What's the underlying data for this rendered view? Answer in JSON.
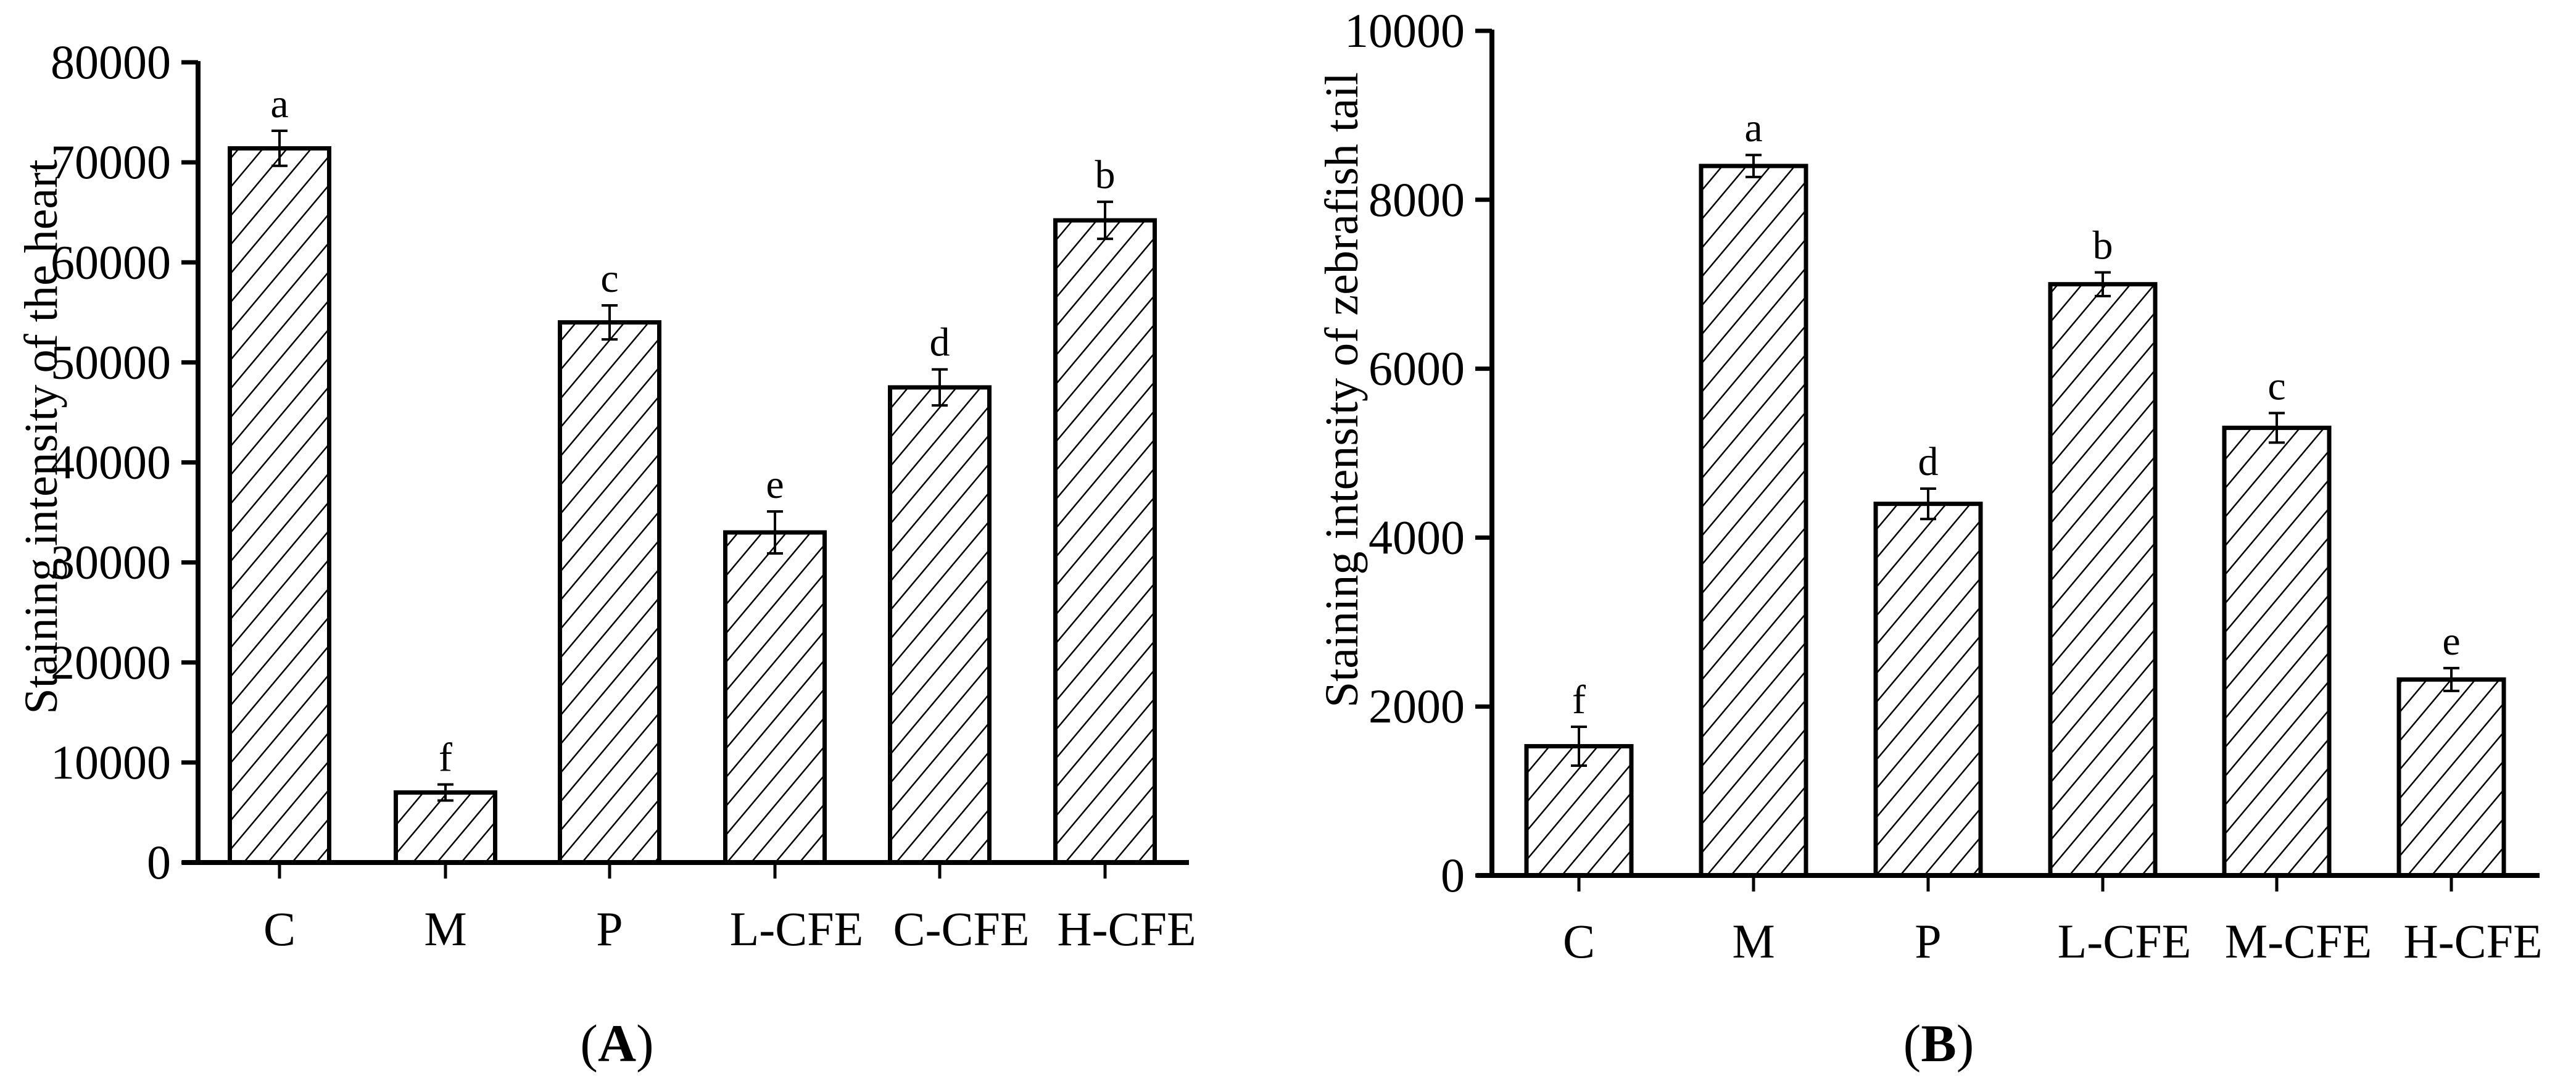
{
  "figure": {
    "panels": [
      {
        "id": "A",
        "label_open": "(",
        "label_letter": "A",
        "label_close": ")"
      },
      {
        "id": "B",
        "label_open": "(",
        "label_letter": "B",
        "label_close": ")"
      }
    ]
  },
  "chart_data": [
    {
      "type": "bar",
      "title": "",
      "panel": "A",
      "xlabel": "",
      "ylabel": "Staining intensity of the heart",
      "categories": [
        "C",
        "M",
        "P",
        "L-CFE",
        "C-CFE",
        "H-CFE"
      ],
      "values": [
        71400,
        7000,
        54000,
        33000,
        47500,
        64200
      ],
      "error": [
        1750,
        800,
        1700,
        2100,
        1800,
        1850
      ],
      "significance_letters": [
        "a",
        "f",
        "c",
        "e",
        "d",
        "b"
      ],
      "ylim": [
        0,
        80000
      ],
      "yticks": [
        0,
        10000,
        20000,
        30000,
        40000,
        50000,
        60000,
        70000,
        80000
      ],
      "ytick_labels": [
        "0",
        "10000",
        "20000",
        "30000",
        "40000",
        "50000",
        "60000",
        "70000",
        "80000"
      ],
      "grid": false,
      "legend": null,
      "bar_fill": "diagonal-hatch",
      "colors": {
        "stroke": "#000000",
        "fill": "#ffffff"
      }
    },
    {
      "type": "bar",
      "title": "",
      "panel": "B",
      "xlabel": "",
      "ylabel": "Staining intensity of zebrafish tail",
      "categories": [
        "C",
        "M",
        "P",
        "L-CFE",
        "M-CFE",
        "H-CFE"
      ],
      "values": [
        1530,
        8400,
        4400,
        7000,
        5300,
        2320
      ],
      "error": [
        230,
        130,
        180,
        140,
        175,
        135
      ],
      "significance_letters": [
        "f",
        "a",
        "d",
        "b",
        "c",
        "e"
      ],
      "ylim": [
        0,
        10000
      ],
      "yticks": [
        0,
        2000,
        4000,
        6000,
        8000,
        10000
      ],
      "ytick_labels": [
        "0",
        "2000",
        "4000",
        "6000",
        "8000",
        "10000"
      ],
      "grid": false,
      "legend": null,
      "bar_fill": "diagonal-hatch",
      "colors": {
        "stroke": "#000000",
        "fill": "#ffffff"
      }
    }
  ]
}
